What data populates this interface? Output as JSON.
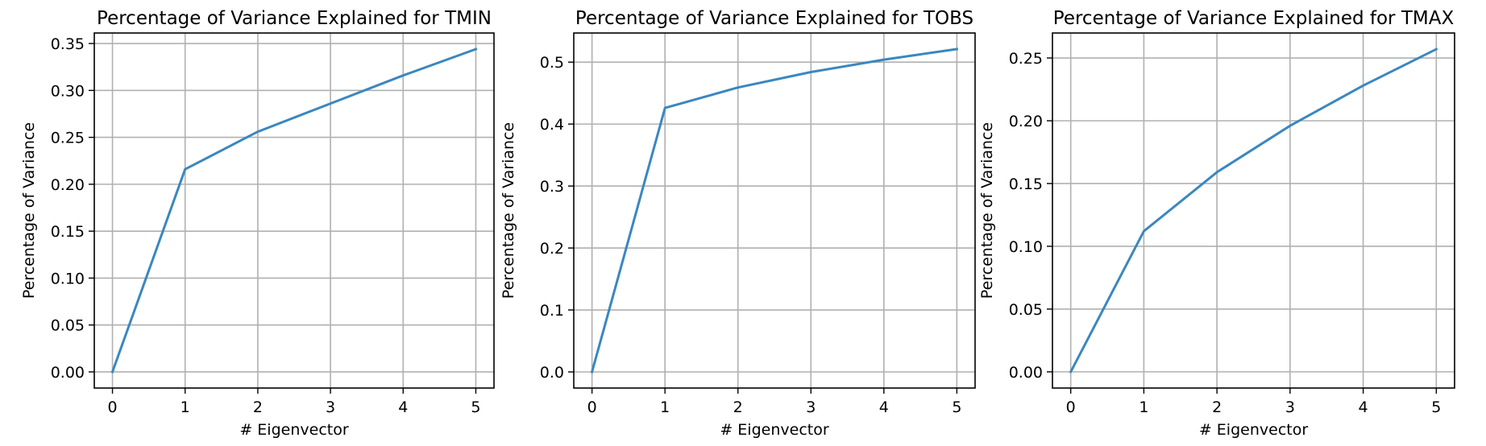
{
  "figure": {
    "background": "#ffffff"
  },
  "chart_data": [
    {
      "type": "line",
      "title": "Percentage of Variance Explained for TMIN",
      "xlabel": "# Eigenvector",
      "ylabel": "Percentage of Variance",
      "x": [
        0,
        1,
        2,
        3,
        4,
        5
      ],
      "series": [
        {
          "values": [
            0.0,
            0.216,
            0.256,
            0.286,
            0.316,
            0.344
          ],
          "color": "#3a87c0"
        }
      ],
      "xlim": [
        -0.25,
        5.25
      ],
      "ylim": [
        -0.0172,
        0.3612
      ],
      "xticks": [
        0,
        1,
        2,
        3,
        4,
        5
      ],
      "yticks": [
        0.0,
        0.05,
        0.1,
        0.15,
        0.2,
        0.25,
        0.3,
        0.35
      ],
      "xtick_labels": [
        "0",
        "1",
        "2",
        "3",
        "4",
        "5"
      ],
      "ytick_labels": [
        "0.00",
        "0.05",
        "0.10",
        "0.15",
        "0.20",
        "0.25",
        "0.30",
        "0.35"
      ],
      "grid": true
    },
    {
      "type": "line",
      "title": "Percentage of Variance Explained for TOBS",
      "xlabel": "# Eigenvector",
      "ylabel": "Percentage of Variance",
      "x": [
        0,
        1,
        2,
        3,
        4,
        5
      ],
      "series": [
        {
          "values": [
            0.0,
            0.426,
            0.459,
            0.484,
            0.504,
            0.521
          ],
          "color": "#3a87c0"
        }
      ],
      "xlim": [
        -0.25,
        5.25
      ],
      "ylim": [
        -0.026,
        0.547
      ],
      "xticks": [
        0,
        1,
        2,
        3,
        4,
        5
      ],
      "yticks": [
        0.0,
        0.1,
        0.2,
        0.3,
        0.4,
        0.5
      ],
      "xtick_labels": [
        "0",
        "1",
        "2",
        "3",
        "4",
        "5"
      ],
      "ytick_labels": [
        "0.0",
        "0.1",
        "0.2",
        "0.3",
        "0.4",
        "0.5"
      ],
      "grid": true
    },
    {
      "type": "line",
      "title": "Percentage of Variance Explained for TMAX",
      "xlabel": "# Eigenvector",
      "ylabel": "Percentage of Variance",
      "x": [
        0,
        1,
        2,
        3,
        4,
        5
      ],
      "series": [
        {
          "values": [
            0.0,
            0.112,
            0.159,
            0.196,
            0.228,
            0.257
          ],
          "color": "#3a87c0"
        }
      ],
      "xlim": [
        -0.25,
        5.25
      ],
      "ylim": [
        -0.0129,
        0.2699
      ],
      "xticks": [
        0,
        1,
        2,
        3,
        4,
        5
      ],
      "yticks": [
        0.0,
        0.05,
        0.1,
        0.15,
        0.2,
        0.25
      ],
      "xtick_labels": [
        "0",
        "1",
        "2",
        "3",
        "4",
        "5"
      ],
      "ytick_labels": [
        "0.00",
        "0.05",
        "0.10",
        "0.15",
        "0.20",
        "0.25"
      ],
      "grid": true
    }
  ]
}
